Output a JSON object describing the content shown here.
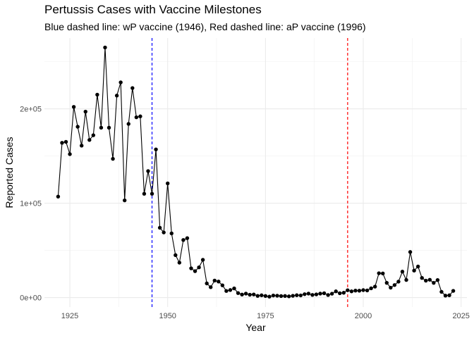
{
  "chart_data": {
    "type": "line",
    "title": "Pertussis Cases with Vaccine Milestones",
    "subtitle": "Blue dashed line: wP vaccine (1946), Red dashed line: aP vaccine (1996)",
    "xlabel": "Year",
    "ylabel": "Reported Cases",
    "xlim": [
      1918.5,
      2026.5
    ],
    "ylim": [
      -10000,
      275000
    ],
    "x_ticks": [
      1925,
      1950,
      1975,
      2000,
      2025
    ],
    "x_tick_labels": [
      "1925",
      "1950",
      "1975",
      "2000",
      "2025"
    ],
    "y_ticks": [
      0,
      100000,
      200000
    ],
    "y_tick_labels": [
      "0e+00",
      "1e+05",
      "2e+05"
    ],
    "grid": true,
    "markers": "points",
    "vlines": [
      {
        "x": 1946,
        "color": "#0000ff",
        "style": "dashed"
      },
      {
        "x": 1996,
        "color": "#ff0000",
        "style": "dashed"
      }
    ],
    "series": [
      {
        "color": "#000000",
        "x": [
          1922,
          1923,
          1924,
          1925,
          1926,
          1927,
          1928,
          1929,
          1930,
          1931,
          1932,
          1933,
          1934,
          1935,
          1936,
          1937,
          1938,
          1939,
          1940,
          1941,
          1942,
          1943,
          1944,
          1945,
          1946,
          1947,
          1948,
          1949,
          1950,
          1951,
          1952,
          1953,
          1954,
          1955,
          1956,
          1957,
          1958,
          1959,
          1960,
          1961,
          1962,
          1963,
          1964,
          1965,
          1966,
          1967,
          1968,
          1969,
          1970,
          1971,
          1972,
          1973,
          1974,
          1975,
          1976,
          1977,
          1978,
          1979,
          1980,
          1981,
          1982,
          1983,
          1984,
          1985,
          1986,
          1987,
          1988,
          1989,
          1990,
          1991,
          1992,
          1993,
          1994,
          1995,
          1996,
          1997,
          1998,
          1999,
          2000,
          2001,
          2002,
          2003,
          2004,
          2005,
          2006,
          2007,
          2008,
          2009,
          2010,
          2011,
          2012,
          2013,
          2014,
          2015,
          2016,
          2017,
          2018,
          2019,
          2020,
          2021,
          2022,
          2023
        ],
        "y": [
          107000,
          164000,
          165000,
          152000,
          202000,
          181000,
          161000,
          197000,
          167000,
          172000,
          215000,
          180000,
          265000,
          180000,
          147000,
          214000,
          228000,
          103000,
          184000,
          222000,
          191000,
          192000,
          110000,
          134000,
          110000,
          157000,
          74000,
          69000,
          121000,
          68000,
          45000,
          37000,
          61000,
          63000,
          31000,
          28000,
          32000,
          40000,
          15000,
          11000,
          18000,
          17000,
          13000,
          7000,
          8000,
          9700,
          4800,
          3200,
          4200,
          3000,
          3300,
          1800,
          2400,
          1700,
          1000,
          2200,
          2000,
          1600,
          1700,
          1300,
          1900,
          2500,
          2300,
          3600,
          4200,
          2800,
          3400,
          4200,
          4600,
          2700,
          4100,
          6600,
          4600,
          5100,
          7800,
          6600,
          7400,
          7300,
          7900,
          7600,
          9800,
          11600,
          25800,
          25600,
          15600,
          10500,
          13300,
          16900,
          27500,
          18700,
          48300,
          28600,
          32900,
          20800,
          17900,
          18900,
          15600,
          18600,
          6100,
          2100,
          2400,
          7100
        ]
      }
    ]
  }
}
